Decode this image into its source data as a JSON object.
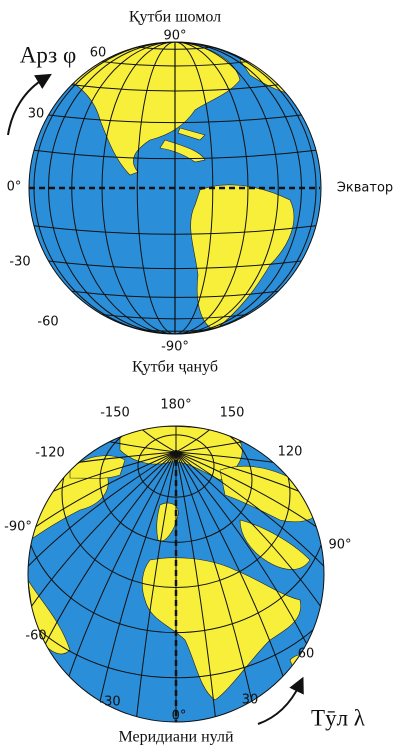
{
  "top_globe": {
    "north_label": "Қутби шомол",
    "south_label": "Қутби ҷануб",
    "axis_label": "Арз φ",
    "equator_label": "Экватор",
    "latitude_labels": [
      "90°",
      "60",
      "30",
      "0°",
      "-30",
      "-60",
      "-90°"
    ]
  },
  "bottom_globe": {
    "axis_label": "Тӯл λ",
    "meridian_label": "Меридиани нулӣ",
    "longitude_labels": [
      "-150",
      "180°",
      "150",
      "-120",
      "120",
      "-90°",
      "90°",
      "-60",
      "60",
      "-30",
      "30",
      "0°"
    ]
  }
}
